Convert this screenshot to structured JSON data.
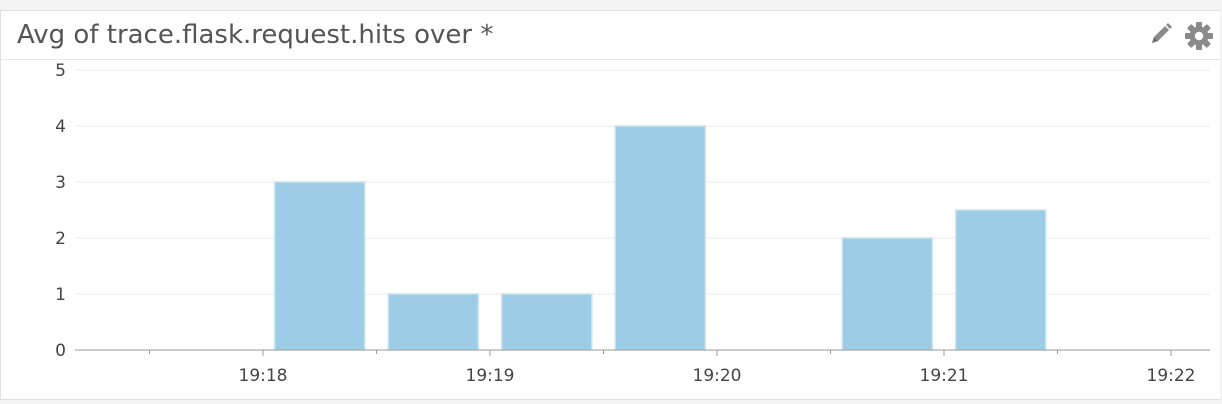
{
  "widget": {
    "title": "Avg of trace.flask.request.hits over *",
    "icons": [
      "pencil-icon",
      "gear-icon"
    ]
  },
  "colors": {
    "bar_fill": "#9ccce6",
    "bar_edge": "#c8e3f2",
    "grid": "#e8e8e8",
    "axis": "#999999",
    "icon": "#8a8a8a"
  },
  "chart_data": {
    "type": "bar",
    "title": "Avg of trace.flask.request.hits over *",
    "x": [
      "19:17:45",
      "19:18:15",
      "19:18:45",
      "19:19:15",
      "19:19:45",
      "19:20:15",
      "19:20:45",
      "19:21:15",
      "19:21:45"
    ],
    "values": [
      0,
      3,
      1,
      1,
      4,
      0,
      2,
      2.5,
      0
    ],
    "x_tick_labels": [
      "19:18",
      "19:19",
      "19:20",
      "19:21",
      "19:22"
    ],
    "y_tick_labels": [
      "0",
      "1",
      "2",
      "3",
      "4",
      "5"
    ],
    "ylim": [
      0,
      5
    ],
    "xlim": [
      "19:17:30",
      "19:22:00"
    ],
    "xlabel": "",
    "ylabel": "",
    "grid": true,
    "legend": "none"
  }
}
